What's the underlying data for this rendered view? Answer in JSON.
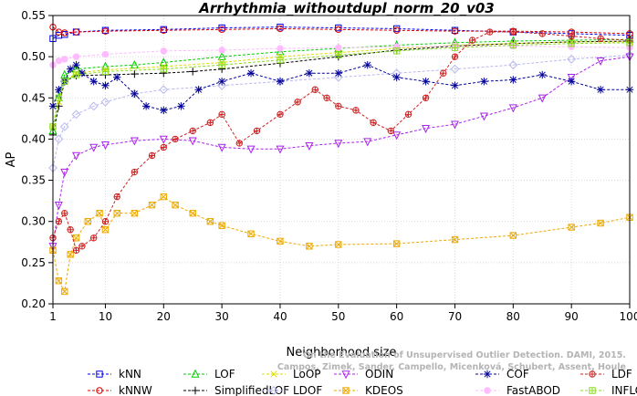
{
  "chart_data": {
    "type": "line",
    "title": "Arrhythmia_withoutdupl_norm_20_v03",
    "xlabel": "Neighborhood size",
    "ylabel": "AP",
    "xlim": [
      1,
      100
    ],
    "ylim": [
      0.2,
      0.55
    ],
    "xticks": [
      1,
      10,
      20,
      30,
      40,
      50,
      60,
      70,
      80,
      90,
      100
    ],
    "yticks": [
      0.2,
      0.25,
      0.3,
      0.35,
      0.4,
      0.45,
      0.5,
      0.55
    ],
    "grid": true,
    "legend_position": "bottom",
    "credit": [
      "Campos, Zimek, Sander, Campello, Micenková, Schubert, Assent, Houle",
      "On the Evaluation of Unsupervised Outlier Detection. DAMI, 2015."
    ],
    "series": [
      {
        "name": "kNN",
        "color": "#0000ee",
        "marker": "square",
        "points": [
          [
            1,
            0.522
          ],
          [
            2,
            0.526
          ],
          [
            3,
            0.527
          ],
          [
            5,
            0.53
          ],
          [
            10,
            0.532
          ],
          [
            20,
            0.533
          ],
          [
            30,
            0.535
          ],
          [
            40,
            0.536
          ],
          [
            50,
            0.535
          ],
          [
            60,
            0.534
          ],
          [
            70,
            0.532
          ],
          [
            80,
            0.53
          ],
          [
            90,
            0.528
          ],
          [
            100,
            0.526
          ]
        ]
      },
      {
        "name": "kNNW",
        "color": "#dd0000",
        "marker": "circle",
        "points": [
          [
            1,
            0.536
          ],
          [
            2,
            0.53
          ],
          [
            3,
            0.529
          ],
          [
            5,
            0.53
          ],
          [
            10,
            0.531
          ],
          [
            20,
            0.532
          ],
          [
            30,
            0.533
          ],
          [
            40,
            0.534
          ],
          [
            50,
            0.533
          ],
          [
            60,
            0.532
          ],
          [
            70,
            0.531
          ],
          [
            80,
            0.531
          ],
          [
            90,
            0.53
          ],
          [
            100,
            0.528
          ]
        ]
      },
      {
        "name": "LOF",
        "color": "#00cc00",
        "marker": "triangle-up",
        "points": [
          [
            1,
            0.41
          ],
          [
            2,
            0.45
          ],
          [
            3,
            0.478
          ],
          [
            5,
            0.485
          ],
          [
            10,
            0.488
          ],
          [
            15,
            0.49
          ],
          [
            20,
            0.493
          ],
          [
            30,
            0.5
          ],
          [
            40,
            0.506
          ],
          [
            50,
            0.51
          ],
          [
            60,
            0.514
          ],
          [
            70,
            0.517
          ],
          [
            80,
            0.519
          ],
          [
            90,
            0.52
          ],
          [
            100,
            0.521
          ]
        ]
      },
      {
        "name": "SimplifiedLOF",
        "color": "#000000",
        "marker": "plus",
        "points": [
          [
            1,
            0.405
          ],
          [
            2,
            0.44
          ],
          [
            3,
            0.47
          ],
          [
            5,
            0.477
          ],
          [
            10,
            0.478
          ],
          [
            15,
            0.479
          ],
          [
            20,
            0.48
          ],
          [
            25,
            0.482
          ],
          [
            30,
            0.485
          ],
          [
            40,
            0.492
          ],
          [
            50,
            0.5
          ],
          [
            60,
            0.508
          ],
          [
            70,
            0.513
          ],
          [
            80,
            0.516
          ],
          [
            90,
            0.518
          ],
          [
            100,
            0.519
          ]
        ]
      },
      {
        "name": "LoOP",
        "color": "#dddd00",
        "marker": "x",
        "points": [
          [
            1,
            0.415
          ],
          [
            2,
            0.445
          ],
          [
            3,
            0.47
          ],
          [
            5,
            0.48
          ],
          [
            10,
            0.484
          ],
          [
            20,
            0.488
          ],
          [
            30,
            0.493
          ],
          [
            40,
            0.5
          ],
          [
            50,
            0.505
          ],
          [
            60,
            0.51
          ],
          [
            70,
            0.514
          ],
          [
            80,
            0.516
          ],
          [
            90,
            0.518
          ],
          [
            100,
            0.518
          ]
        ]
      },
      {
        "name": "LDOF",
        "color": "#b8b8f0",
        "marker": "diamond",
        "points": [
          [
            1,
            0.365
          ],
          [
            2,
            0.4
          ],
          [
            3,
            0.415
          ],
          [
            5,
            0.43
          ],
          [
            8,
            0.44
          ],
          [
            10,
            0.445
          ],
          [
            15,
            0.455
          ],
          [
            20,
            0.46
          ],
          [
            30,
            0.465
          ],
          [
            40,
            0.47
          ],
          [
            50,
            0.475
          ],
          [
            60,
            0.48
          ],
          [
            70,
            0.485
          ],
          [
            80,
            0.49
          ],
          [
            90,
            0.497
          ],
          [
            100,
            0.502
          ]
        ]
      },
      {
        "name": "ODIN",
        "color": "#aa22ee",
        "marker": "triangle-down",
        "points": [
          [
            1,
            0.27
          ],
          [
            2,
            0.32
          ],
          [
            3,
            0.36
          ],
          [
            5,
            0.38
          ],
          [
            8,
            0.39
          ],
          [
            10,
            0.393
          ],
          [
            15,
            0.398
          ],
          [
            20,
            0.4
          ],
          [
            25,
            0.398
          ],
          [
            30,
            0.39
          ],
          [
            35,
            0.388
          ],
          [
            40,
            0.388
          ],
          [
            45,
            0.392
          ],
          [
            50,
            0.395
          ],
          [
            55,
            0.397
          ],
          [
            60,
            0.405
          ],
          [
            65,
            0.413
          ],
          [
            70,
            0.418
          ],
          [
            75,
            0.428
          ],
          [
            80,
            0.438
          ],
          [
            85,
            0.45
          ],
          [
            90,
            0.475
          ],
          [
            95,
            0.495
          ],
          [
            100,
            0.5
          ]
        ]
      },
      {
        "name": "KDEOS",
        "color": "#eeaa00",
        "marker": "square-x",
        "points": [
          [
            1,
            0.265
          ],
          [
            2,
            0.228
          ],
          [
            3,
            0.215
          ],
          [
            4,
            0.26
          ],
          [
            5,
            0.28
          ],
          [
            7,
            0.3
          ],
          [
            9,
            0.31
          ],
          [
            10,
            0.29
          ],
          [
            12,
            0.31
          ],
          [
            15,
            0.31
          ],
          [
            18,
            0.32
          ],
          [
            20,
            0.33
          ],
          [
            22,
            0.32
          ],
          [
            25,
            0.31
          ],
          [
            28,
            0.3
          ],
          [
            30,
            0.295
          ],
          [
            35,
            0.285
          ],
          [
            40,
            0.276
          ],
          [
            45,
            0.27
          ],
          [
            50,
            0.272
          ],
          [
            60,
            0.273
          ],
          [
            70,
            0.278
          ],
          [
            80,
            0.283
          ],
          [
            90,
            0.293
          ],
          [
            95,
            0.298
          ],
          [
            100,
            0.305
          ]
        ]
      },
      {
        "name": "COF",
        "color": "#000099",
        "marker": "star",
        "points": [
          [
            1,
            0.44
          ],
          [
            2,
            0.46
          ],
          [
            3,
            0.47
          ],
          [
            4,
            0.485
          ],
          [
            5,
            0.49
          ],
          [
            6,
            0.48
          ],
          [
            8,
            0.47
          ],
          [
            10,
            0.465
          ],
          [
            12,
            0.475
          ],
          [
            15,
            0.455
          ],
          [
            17,
            0.44
          ],
          [
            20,
            0.435
          ],
          [
            23,
            0.44
          ],
          [
            26,
            0.46
          ],
          [
            30,
            0.47
          ],
          [
            35,
            0.48
          ],
          [
            40,
            0.47
          ],
          [
            45,
            0.48
          ],
          [
            50,
            0.48
          ],
          [
            55,
            0.49
          ],
          [
            60,
            0.475
          ],
          [
            65,
            0.47
          ],
          [
            70,
            0.465
          ],
          [
            75,
            0.47
          ],
          [
            80,
            0.472
          ],
          [
            85,
            0.478
          ],
          [
            90,
            0.47
          ],
          [
            95,
            0.46
          ],
          [
            100,
            0.46
          ]
        ]
      },
      {
        "name": "FastABOD",
        "color": "#ffbbff",
        "marker": "circle-filled",
        "points": [
          [
            1,
            0.49
          ],
          [
            2,
            0.495
          ],
          [
            3,
            0.497
          ],
          [
            5,
            0.5
          ],
          [
            10,
            0.503
          ],
          [
            20,
            0.507
          ],
          [
            30,
            0.508
          ],
          [
            40,
            0.51
          ],
          [
            50,
            0.511
          ],
          [
            60,
            0.512
          ],
          [
            70,
            0.513
          ],
          [
            80,
            0.513
          ],
          [
            90,
            0.512
          ],
          [
            100,
            0.511
          ]
        ]
      },
      {
        "name": "LDF",
        "color": "#cc2222",
        "marker": "circle-plus",
        "points": [
          [
            1,
            0.28
          ],
          [
            2,
            0.3
          ],
          [
            3,
            0.31
          ],
          [
            4,
            0.29
          ],
          [
            5,
            0.265
          ],
          [
            6,
            0.27
          ],
          [
            8,
            0.28
          ],
          [
            10,
            0.3
          ],
          [
            12,
            0.33
          ],
          [
            15,
            0.36
          ],
          [
            18,
            0.38
          ],
          [
            20,
            0.39
          ],
          [
            22,
            0.4
          ],
          [
            25,
            0.41
          ],
          [
            28,
            0.42
          ],
          [
            30,
            0.43
          ],
          [
            33,
            0.395
          ],
          [
            36,
            0.41
          ],
          [
            40,
            0.43
          ],
          [
            43,
            0.445
          ],
          [
            46,
            0.46
          ],
          [
            48,
            0.45
          ],
          [
            50,
            0.44
          ],
          [
            53,
            0.435
          ],
          [
            56,
            0.42
          ],
          [
            59,
            0.41
          ],
          [
            62,
            0.43
          ],
          [
            65,
            0.45
          ],
          [
            68,
            0.48
          ],
          [
            70,
            0.5
          ],
          [
            73,
            0.52
          ],
          [
            76,
            0.53
          ],
          [
            80,
            0.53
          ],
          [
            85,
            0.528
          ],
          [
            90,
            0.525
          ],
          [
            95,
            0.522
          ],
          [
            100,
            0.52
          ]
        ]
      },
      {
        "name": "INFLO",
        "color": "#88dd22",
        "marker": "square-cross",
        "points": [
          [
            1,
            0.415
          ],
          [
            2,
            0.45
          ],
          [
            3,
            0.47
          ],
          [
            5,
            0.478
          ],
          [
            10,
            0.482
          ],
          [
            20,
            0.485
          ],
          [
            30,
            0.49
          ],
          [
            40,
            0.496
          ],
          [
            50,
            0.502
          ],
          [
            60,
            0.507
          ],
          [
            70,
            0.511
          ],
          [
            80,
            0.514
          ],
          [
            90,
            0.516
          ],
          [
            100,
            0.517
          ]
        ]
      }
    ]
  }
}
